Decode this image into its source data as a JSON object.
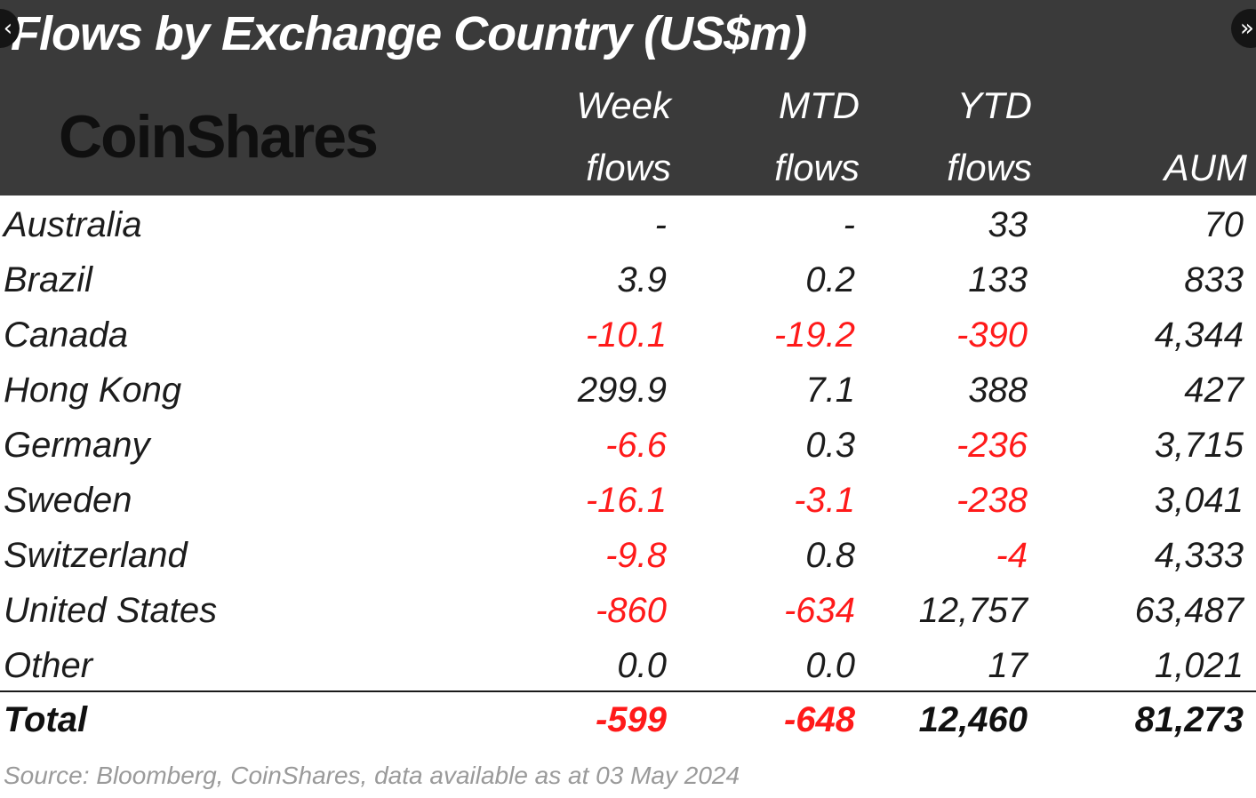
{
  "title": "Flows by Exchange Country (US$m)",
  "logo_text": "CoinShares",
  "columns": {
    "week": [
      "Week",
      "flows"
    ],
    "mtd": [
      "MTD",
      "flows"
    ],
    "ytd": [
      "YTD",
      "flows"
    ],
    "aum": [
      "",
      "AUM"
    ]
  },
  "navigation": {
    "prev_icon": "chevron-left-icon",
    "next_icon": "double-chevron-right-icon"
  },
  "rows": [
    {
      "country": "Australia",
      "week": "-",
      "mtd": "-",
      "ytd": "33",
      "aum": "70"
    },
    {
      "country": "Brazil",
      "week": "3.9",
      "mtd": "0.2",
      "ytd": "133",
      "aum": "833"
    },
    {
      "country": "Canada",
      "week": "-10.1",
      "mtd": "-19.2",
      "ytd": "-390",
      "aum": "4,344"
    },
    {
      "country": "Hong Kong",
      "week": "299.9",
      "mtd": "7.1",
      "ytd": "388",
      "aum": "427"
    },
    {
      "country": "Germany",
      "week": "-6.6",
      "mtd": "0.3",
      "ytd": "-236",
      "aum": "3,715"
    },
    {
      "country": "Sweden",
      "week": "-16.1",
      "mtd": "-3.1",
      "ytd": "-238",
      "aum": "3,041"
    },
    {
      "country": "Switzerland",
      "week": "-9.8",
      "mtd": "0.8",
      "ytd": "-4",
      "aum": "4,333"
    },
    {
      "country": "United States",
      "week": "-860",
      "mtd": "-634",
      "ytd": "12,757",
      "aum": "63,487"
    },
    {
      "country": "Other",
      "week": "0.0",
      "mtd": "0.0",
      "ytd": "17",
      "aum": "1,021"
    }
  ],
  "total": {
    "country": "Total",
    "week": "-599",
    "mtd": "-648",
    "ytd": "12,460",
    "aum": "81,273"
  },
  "source": "Source: Bloomberg, CoinShares, data available as at 03 May 2024",
  "colors": {
    "header_bg": "#3a3a3a",
    "negative": "#ff1a1a",
    "text": "#1c1c1c",
    "source_text": "#9a9a9a"
  }
}
